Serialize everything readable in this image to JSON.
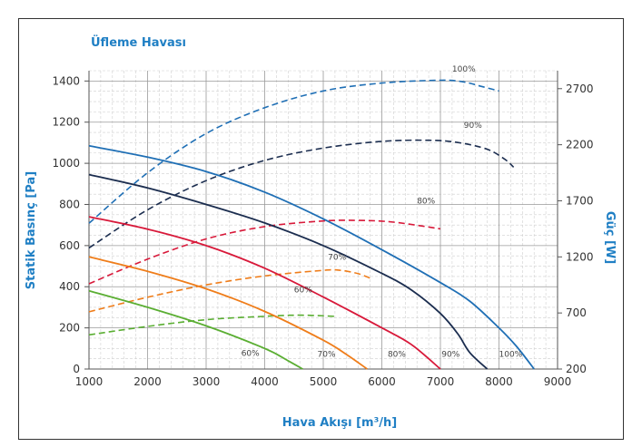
{
  "chart_data": {
    "type": "line",
    "title": "Üfleme Havası",
    "xlabel": "Hava Akışı [m³/h]",
    "ylabel": "Statik Basınç [Pa]",
    "y2label": "Güç [W]",
    "xlim": [
      1000,
      9000
    ],
    "ylim": [
      0,
      1450
    ],
    "y2lim": [
      200,
      2860
    ],
    "x_ticks": [
      1000,
      2000,
      3000,
      4000,
      5000,
      6000,
      7000,
      8000,
      9000
    ],
    "y_ticks": [
      0,
      200,
      400,
      600,
      800,
      1000,
      1200,
      1400
    ],
    "y2_ticks": [
      200,
      700,
      1200,
      1700,
      2200,
      2700
    ],
    "grid": true,
    "legend": "none",
    "pressure_series": [
      {
        "label": "100%",
        "color": "#1f6fb5",
        "points": [
          [
            1000,
            1085
          ],
          [
            2000,
            1030
          ],
          [
            3000,
            960
          ],
          [
            4000,
            860
          ],
          [
            5000,
            730
          ],
          [
            6000,
            580
          ],
          [
            7000,
            420
          ],
          [
            7500,
            330
          ],
          [
            8000,
            200
          ],
          [
            8300,
            110
          ],
          [
            8600,
            0
          ]
        ]
      },
      {
        "label": "90%",
        "color": "#1b2d4f",
        "points": [
          [
            1000,
            945
          ],
          [
            2000,
            880
          ],
          [
            3000,
            800
          ],
          [
            4000,
            710
          ],
          [
            5000,
            600
          ],
          [
            6000,
            465
          ],
          [
            6500,
            385
          ],
          [
            7000,
            270
          ],
          [
            7300,
            170
          ],
          [
            7500,
            80
          ],
          [
            7800,
            0
          ]
        ]
      },
      {
        "label": "80%",
        "color": "#d8193a",
        "points": [
          [
            1000,
            740
          ],
          [
            2000,
            680
          ],
          [
            3000,
            600
          ],
          [
            4000,
            490
          ],
          [
            5000,
            350
          ],
          [
            6000,
            200
          ],
          [
            6500,
            120
          ],
          [
            7000,
            0
          ]
        ]
      },
      {
        "label": "70%",
        "color": "#ef7d1a",
        "points": [
          [
            1000,
            545
          ],
          [
            2000,
            475
          ],
          [
            3000,
            390
          ],
          [
            4000,
            280
          ],
          [
            5000,
            140
          ],
          [
            5400,
            70
          ],
          [
            5750,
            0
          ]
        ]
      },
      {
        "label": "60%",
        "color": "#5aae32",
        "points": [
          [
            1000,
            380
          ],
          [
            2000,
            300
          ],
          [
            3000,
            210
          ],
          [
            4000,
            100
          ],
          [
            4400,
            40
          ],
          [
            4650,
            0
          ]
        ]
      }
    ],
    "power_series": [
      {
        "label": "100%",
        "color": "#1f6fb5",
        "points": [
          [
            1000,
            1500
          ],
          [
            2000,
            1950
          ],
          [
            3000,
            2300
          ],
          [
            4000,
            2530
          ],
          [
            5000,
            2680
          ],
          [
            6000,
            2750
          ],
          [
            7000,
            2775
          ],
          [
            7400,
            2760
          ],
          [
            7700,
            2720
          ],
          [
            8000,
            2680
          ]
        ]
      },
      {
        "label": "90%",
        "color": "#1b2d4f",
        "points": [
          [
            1000,
            1280
          ],
          [
            2000,
            1620
          ],
          [
            3000,
            1880
          ],
          [
            4000,
            2060
          ],
          [
            5000,
            2170
          ],
          [
            6000,
            2230
          ],
          [
            6800,
            2240
          ],
          [
            7300,
            2220
          ],
          [
            7800,
            2160
          ],
          [
            8100,
            2070
          ],
          [
            8250,
            2000
          ]
        ]
      },
      {
        "label": "80%",
        "color": "#d8193a",
        "points": [
          [
            1000,
            960
          ],
          [
            2000,
            1180
          ],
          [
            3000,
            1360
          ],
          [
            4000,
            1470
          ],
          [
            5000,
            1520
          ],
          [
            5600,
            1525
          ],
          [
            6200,
            1510
          ],
          [
            7000,
            1450
          ]
        ]
      },
      {
        "label": "70%",
        "color": "#ef7d1a",
        "points": [
          [
            1000,
            710
          ],
          [
            2000,
            840
          ],
          [
            3000,
            950
          ],
          [
            4000,
            1030
          ],
          [
            5000,
            1080
          ],
          [
            5300,
            1080
          ],
          [
            5600,
            1050
          ],
          [
            5800,
            1010
          ]
        ]
      },
      {
        "label": "60%",
        "color": "#5aae32",
        "points": [
          [
            1000,
            505
          ],
          [
            2000,
            580
          ],
          [
            3000,
            640
          ],
          [
            4000,
            670
          ],
          [
            4600,
            680
          ],
          [
            5200,
            670
          ]
        ]
      }
    ],
    "annotations": [
      {
        "text": "100%",
        "x": 7200,
        "y": 2850
      },
      {
        "text": "90%",
        "x": 7400,
        "y": 2350
      },
      {
        "text": "80%",
        "x": 6600,
        "y": 1675
      },
      {
        "text": "70%",
        "x": 5080,
        "y": 1175
      },
      {
        "text": "60%",
        "x": 4500,
        "y": 885
      },
      {
        "text": "60%",
        "x": 3600,
        "y": 65,
        "axis": "left"
      },
      {
        "text": "70%",
        "x": 4900,
        "y": 60,
        "axis": "left"
      },
      {
        "text": "80%",
        "x": 6100,
        "y": 60,
        "axis": "left"
      },
      {
        "text": "90%",
        "x": 7020,
        "y": 60,
        "axis": "left"
      },
      {
        "text": "100%",
        "x": 8000,
        "y": 60,
        "axis": "left"
      }
    ]
  }
}
